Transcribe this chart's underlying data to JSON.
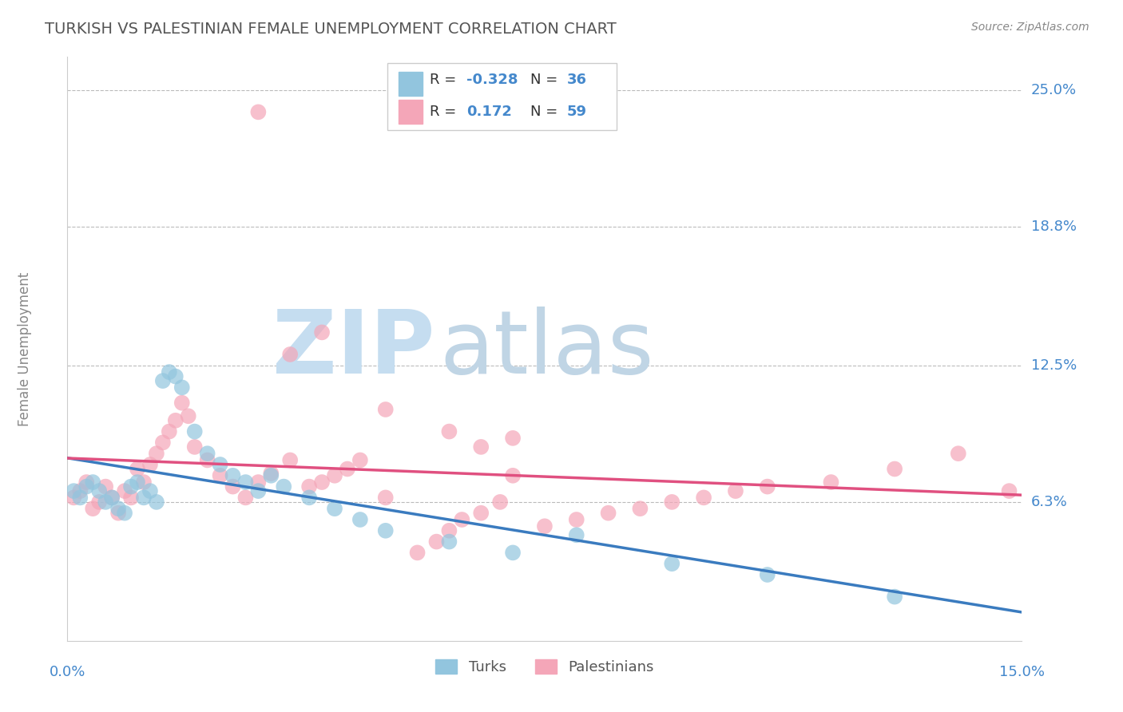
{
  "title": "TURKISH VS PALESTINIAN FEMALE UNEMPLOYMENT CORRELATION CHART",
  "source": "Source: ZipAtlas.com",
  "ylabel": "Female Unemployment",
  "x_min": 0.0,
  "x_max": 0.15,
  "y_min": 0.0,
  "y_max": 0.265,
  "x_tick_labels": [
    "0.0%",
    "15.0%"
  ],
  "y_ticks": [
    0.063,
    0.125,
    0.188,
    0.25
  ],
  "y_tick_labels": [
    "6.3%",
    "12.5%",
    "18.8%",
    "25.0%"
  ],
  "color_blue": "#92c5de",
  "color_pink": "#f4a6b8",
  "color_blue_line": "#3a7bbf",
  "color_pink_line": "#e05080",
  "turks_x": [
    0.001,
    0.002,
    0.003,
    0.004,
    0.005,
    0.006,
    0.007,
    0.008,
    0.009,
    0.01,
    0.011,
    0.012,
    0.013,
    0.014,
    0.015,
    0.016,
    0.017,
    0.018,
    0.02,
    0.022,
    0.024,
    0.026,
    0.028,
    0.03,
    0.032,
    0.034,
    0.038,
    0.042,
    0.046,
    0.05,
    0.06,
    0.07,
    0.08,
    0.095,
    0.11,
    0.13
  ],
  "turks_y": [
    0.068,
    0.065,
    0.07,
    0.072,
    0.068,
    0.063,
    0.065,
    0.06,
    0.058,
    0.07,
    0.072,
    0.065,
    0.068,
    0.063,
    0.118,
    0.122,
    0.12,
    0.115,
    0.095,
    0.085,
    0.08,
    0.075,
    0.072,
    0.068,
    0.075,
    0.07,
    0.065,
    0.06,
    0.055,
    0.05,
    0.045,
    0.04,
    0.048,
    0.035,
    0.03,
    0.02
  ],
  "palestinians_x": [
    0.001,
    0.002,
    0.003,
    0.004,
    0.005,
    0.006,
    0.007,
    0.008,
    0.009,
    0.01,
    0.011,
    0.012,
    0.013,
    0.014,
    0.015,
    0.016,
    0.017,
    0.018,
    0.019,
    0.02,
    0.022,
    0.024,
    0.026,
    0.028,
    0.03,
    0.032,
    0.035,
    0.038,
    0.04,
    0.042,
    0.044,
    0.046,
    0.05,
    0.055,
    0.058,
    0.06,
    0.062,
    0.065,
    0.068,
    0.07,
    0.075,
    0.08,
    0.085,
    0.09,
    0.095,
    0.1,
    0.105,
    0.11,
    0.12,
    0.13,
    0.14,
    0.148,
    0.035,
    0.04,
    0.05,
    0.06,
    0.065,
    0.07,
    0.03
  ],
  "palestinians_y": [
    0.065,
    0.068,
    0.072,
    0.06,
    0.063,
    0.07,
    0.065,
    0.058,
    0.068,
    0.065,
    0.078,
    0.072,
    0.08,
    0.085,
    0.09,
    0.095,
    0.1,
    0.108,
    0.102,
    0.088,
    0.082,
    0.075,
    0.07,
    0.065,
    0.072,
    0.076,
    0.082,
    0.07,
    0.072,
    0.075,
    0.078,
    0.082,
    0.065,
    0.04,
    0.045,
    0.05,
    0.055,
    0.058,
    0.063,
    0.075,
    0.052,
    0.055,
    0.058,
    0.06,
    0.063,
    0.065,
    0.068,
    0.07,
    0.072,
    0.078,
    0.085,
    0.068,
    0.13,
    0.14,
    0.105,
    0.095,
    0.088,
    0.092,
    0.24
  ],
  "background_color": "#ffffff",
  "grid_color": "#bbbbbb",
  "title_color": "#555555",
  "axis_label_color": "#4488cc",
  "watermark_zip_color": "#c8dcf0",
  "watermark_atlas_color": "#c8d8e8"
}
